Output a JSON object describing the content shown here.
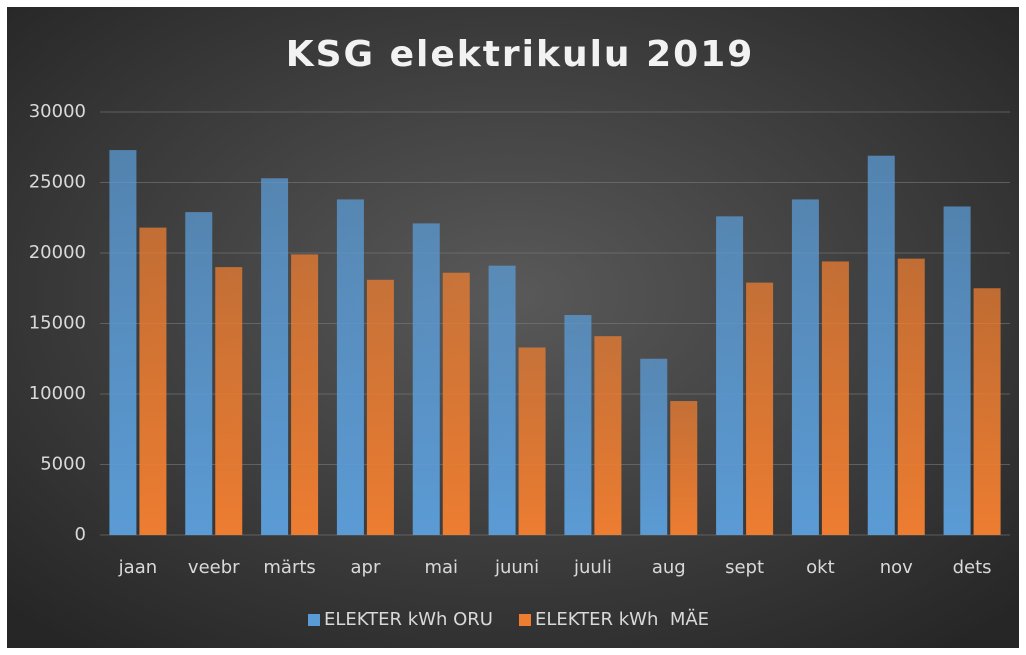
{
  "chart_data": {
    "type": "bar",
    "title": "KSG elektrikulu 2019",
    "categories": [
      "jaan",
      "veebr",
      "märts",
      "apr",
      "mai",
      "juuni",
      "juuli",
      "aug",
      "sept",
      "okt",
      "nov",
      "dets"
    ],
    "series": [
      {
        "name": "ELEKTER kWh ORU",
        "color": "#5b9bd5",
        "values": [
          27300,
          22900,
          25300,
          23800,
          22100,
          19100,
          15600,
          12500,
          22600,
          23800,
          26900,
          23300
        ]
      },
      {
        "name": "ELEKTER kWh  MÄE",
        "color": "#ed7d31",
        "values": [
          21800,
          19000,
          19900,
          18100,
          18600,
          13300,
          14100,
          9500,
          17900,
          19400,
          19600,
          17500
        ]
      }
    ],
    "ylim": [
      0,
      30000
    ],
    "yticks": [
      0,
      5000,
      10000,
      15000,
      20000,
      25000,
      30000
    ],
    "grid": true,
    "legend": "bottom"
  }
}
